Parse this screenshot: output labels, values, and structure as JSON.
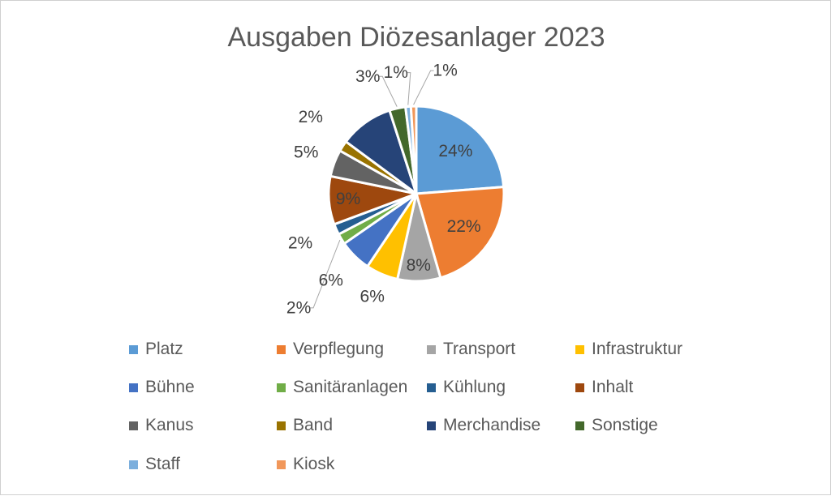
{
  "chart_data": {
    "type": "pie",
    "title": "Ausgaben Diözesanlager 2023",
    "categories": [
      "Platz",
      "Verpflegung",
      "Transport",
      "Infrastruktur",
      "Bühne",
      "Sanitäranlagen",
      "Kühlung",
      "Inhalt",
      "Kanus",
      "Band",
      "Merchandise",
      "Sonstige",
      "Staff",
      "Kiosk"
    ],
    "values": [
      24,
      22,
      8,
      6,
      6,
      2,
      2,
      9,
      5,
      2,
      10,
      3,
      1,
      1
    ],
    "labels": [
      "24%",
      "22%",
      "8%",
      "6%",
      "6%",
      "2%",
      "2%",
      "9%",
      "5%",
      "2%",
      "",
      "3%",
      "1%",
      "1%"
    ],
    "colors": [
      "#5B9BD5",
      "#ED7D31",
      "#A5A5A5",
      "#FFC000",
      "#4472C4",
      "#70AD47",
      "#255E91",
      "#9E480E",
      "#636363",
      "#997300",
      "#264478",
      "#43682B",
      "#7CAFDD",
      "#F1975A"
    ],
    "legend_position": "bottom"
  }
}
